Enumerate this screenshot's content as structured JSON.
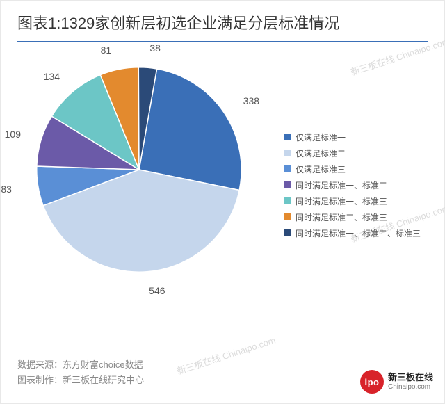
{
  "title": "图表1:1329家创新层初选企业满足分层标准情况",
  "rule_color": "#3a6fb7",
  "chart": {
    "type": "pie",
    "background_color": "#ffffff",
    "start_angle_deg": -80,
    "label_fontsize": 14,
    "label_color": "#555555",
    "legend_fontsize": 12,
    "slices": [
      {
        "label": "仅满足标准一",
        "value": 338,
        "color": "#3a6fb7"
      },
      {
        "label": "仅满足标准二",
        "value": 546,
        "color": "#c5d6ec"
      },
      {
        "label": "仅满足标准三",
        "value": 83,
        "color": "#5a8fd6"
      },
      {
        "label": "同时满足标准一、标准二",
        "value": 109,
        "color": "#6b5aa8"
      },
      {
        "label": "同时满足标准一、标准三",
        "value": 134,
        "color": "#6cc6c6"
      },
      {
        "label": "同时满足标准二、标准三",
        "value": 81,
        "color": "#e38a2e"
      },
      {
        "label": "同时满足标准一、标准二、标准三",
        "value": 38,
        "color": "#2b4a78"
      }
    ]
  },
  "source_label": "数据来源：东方财富choice数据",
  "maker_label": "图表制作：新三板在线研究中心",
  "brand": {
    "badge_text": "ipo",
    "badge_bg": "#d8232a",
    "cn": "新三板在线",
    "en": "Chinaipo.com"
  },
  "watermark_text": "新三板在线 Chinaipo.com"
}
